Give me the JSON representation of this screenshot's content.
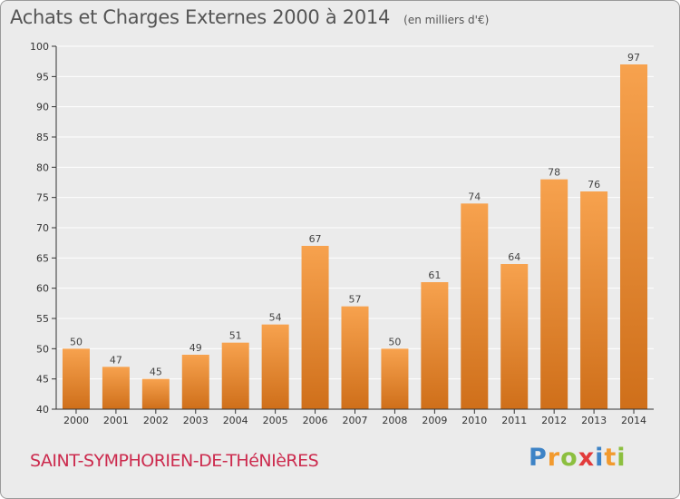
{
  "title": "Achats et Charges Externes 2000 à 2014",
  "unit_label": "(en milliers d'€)",
  "commune": "SAINT-SYMPHORIEN-DE-THéNIèRES",
  "logo": {
    "text": "Proxiti",
    "letters": [
      {
        "char": "P",
        "color": "#3d83c6"
      },
      {
        "char": "r",
        "color": "#f29a2e"
      },
      {
        "char": "o",
        "color": "#8cbf3f"
      },
      {
        "char": "x",
        "color": "#e23b3b"
      },
      {
        "char": "i",
        "color": "#3d83c6"
      },
      {
        "char": "t",
        "color": "#f29a2e"
      },
      {
        "char": "i",
        "color": "#8cbf3f"
      }
    ]
  },
  "colors": {
    "bar_top": "#f7a24e",
    "bar_bottom": "#cf6f1a",
    "axis": "#333333",
    "grid": "#ffffff",
    "background": "#ebebeb"
  },
  "chart_data": {
    "type": "bar",
    "categories": [
      "2000",
      "2001",
      "2002",
      "2003",
      "2004",
      "2005",
      "2006",
      "2007",
      "2008",
      "2009",
      "2010",
      "2011",
      "2012",
      "2013",
      "2014"
    ],
    "values": [
      50,
      47,
      45,
      49,
      51,
      54,
      67,
      57,
      50,
      61,
      74,
      64,
      78,
      76,
      97
    ],
    "yticks": [
      40,
      45,
      50,
      55,
      60,
      65,
      70,
      75,
      80,
      85,
      90,
      95,
      100
    ],
    "ylim": [
      40,
      100
    ],
    "grid": "horizontal",
    "data_labels": true
  }
}
